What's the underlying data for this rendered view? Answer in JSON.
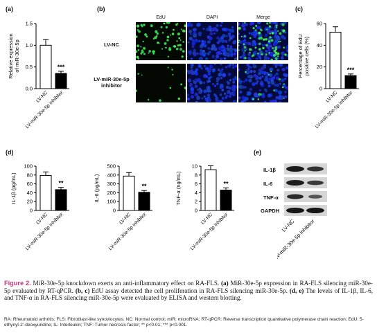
{
  "panels": {
    "a": {
      "label": "(a)",
      "ylabel_line1": "Relative expression",
      "ylabel_line2": "of miR-30e-5p"
    },
    "b": {
      "label": "(b)",
      "columns": [
        "EdU",
        "DAPI",
        "Merge"
      ],
      "rows": [
        "LV-NC",
        "LV-miR-30e-5p inhibitor"
      ]
    },
    "c": {
      "label": "(c)",
      "ylabel_line1": "Percentage of EdU",
      "ylabel_line2": "positive cells (%)"
    },
    "d": {
      "label": "(d)"
    },
    "e": {
      "label": "(e)",
      "bands": [
        "IL-1β",
        "IL-6",
        "TNF-α",
        "GAPDH"
      ],
      "lanes": [
        "LV-NC",
        "LV-miR-30e-5p inhibitor"
      ]
    }
  },
  "chart_data": [
    {
      "id": "a",
      "type": "bar",
      "categories": [
        "LV-NC",
        "LV-miR-30e-5p inhibitor"
      ],
      "values": [
        1.0,
        0.35
      ],
      "errors": [
        0.13,
        0.05
      ],
      "ylabel": "Relative expression of miR-30e-5p",
      "ylim": [
        0,
        1.5
      ],
      "yticks": [
        "0.0",
        "0.5",
        "1.0",
        "1.5"
      ],
      "significance": "***"
    },
    {
      "id": "c",
      "type": "bar",
      "categories": [
        "LV-NC",
        "LV-miR-30e-5p inhibitor"
      ],
      "values": [
        52,
        12
      ],
      "errors": [
        5,
        1.5
      ],
      "ylabel": "Percentage of EdU positive cells (%)",
      "ylim": [
        0,
        60
      ],
      "yticks": [
        "0",
        "20",
        "40",
        "60"
      ],
      "significance": "***"
    },
    {
      "id": "d1",
      "type": "bar",
      "categories": [
        "LV-NC",
        "LV-miR-30e-5p inhibitor"
      ],
      "values": [
        79,
        47
      ],
      "errors": [
        8,
        5
      ],
      "ylabel": "IL-1β (pg/mL)",
      "ylim": [
        0,
        100
      ],
      "yticks": [
        "0",
        "20",
        "40",
        "60",
        "80",
        "100"
      ],
      "significance": "**"
    },
    {
      "id": "d2",
      "type": "bar",
      "categories": [
        "LV-NC",
        "LV-miR-30e-5p inhibitor"
      ],
      "values": [
        388,
        205
      ],
      "errors": [
        40,
        20
      ],
      "ylabel": "IL-6 (pg/mL)",
      "ylim": [
        0,
        500
      ],
      "yticks": [
        "0",
        "100",
        "200",
        "300",
        "400",
        "500"
      ],
      "significance": "**"
    },
    {
      "id": "d3",
      "type": "bar",
      "categories": [
        "LV-NC",
        "LV-miR-30e-5p inhibitor"
      ],
      "values": [
        9.2,
        4.6
      ],
      "errors": [
        0.9,
        0.5
      ],
      "ylabel": "TNF-α (ng/mL)",
      "ylim": [
        0,
        10
      ],
      "yticks": [
        "0",
        "2",
        "4",
        "6",
        "8",
        "10"
      ],
      "significance": "**"
    }
  ],
  "caption": {
    "fig_label": "Figure 2.",
    "text1": " MiR-30e-5p knockdown exerts an anti-inflammatory effect on RA-FLS. ",
    "ref_a": "(a)",
    "text2": " MiR-30e-5p expression in RA-FLS silencing miR-30e-5p evaluated by RT-qPCR. ",
    "ref_bc": "(b, c)",
    "text3": " EdU assay detected the cell proliferation in RA-FLS silencing miR-30e-5p. ",
    "ref_de": "(d, e)",
    "text4": " The levels of IL-1β, IL-6, and TNF-α in RA-FLS silencing miR-30e-5p were evaluated by ELISA and western blotting.",
    "abbreviations": "RA: Rheumatoid arthritis; FLS: Fibroblast-like synoviocytes; NC: Normal control; miR: microRNA; RT-qPCR: Reverse transcription quantitative polymerase chain reaction; EdU: 5-ethynyl-2'-deoxyuridine; IL: Interleukin; TNF: Tumor necrosis factor; ** p<0.01; *** p<0.001."
  },
  "colors": {
    "figure_label": "#c8327a",
    "edu_dots": "#3cc850",
    "dapi": "#1428c8"
  }
}
